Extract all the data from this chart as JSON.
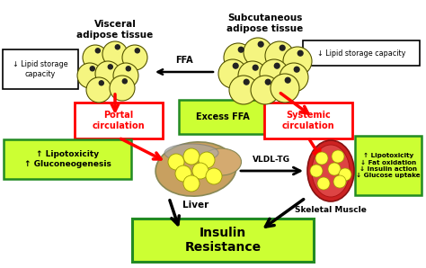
{
  "bg_color": "#ffffff",
  "visceral_label": "Visceral\nadipose tissue",
  "subcutaneous_label": "Subcutaneous\nadipose tissue",
  "lipid_left": "↓ Lipid storage\ncapacity",
  "lipid_right": "↓ Lipid storage capacity",
  "ffa_text": "FFA",
  "portal_text": "Portal\ncirculation",
  "excess_ffa_text": "Excess FFA",
  "systemic_text": "Systemic\ncirculation",
  "lipo_left_text": "↑ Lipotoxicity\n↑ Gluconeogenesis",
  "liver_text": "Liver",
  "vldl_text": "VLDL-TG",
  "skeletal_text": "Skeletal Muscle",
  "lipo_right_text": "↑ Lipotoxicity\n↓ Fat oxidation\n↓ Insulin action\n↓ Glucose uptake",
  "insulin_text": "Insulin\nResistance",
  "green_bg": "#ccff33",
  "green_border": "#228B22",
  "red_color": "#ff0000",
  "black_color": "#000000",
  "white": "#ffffff"
}
